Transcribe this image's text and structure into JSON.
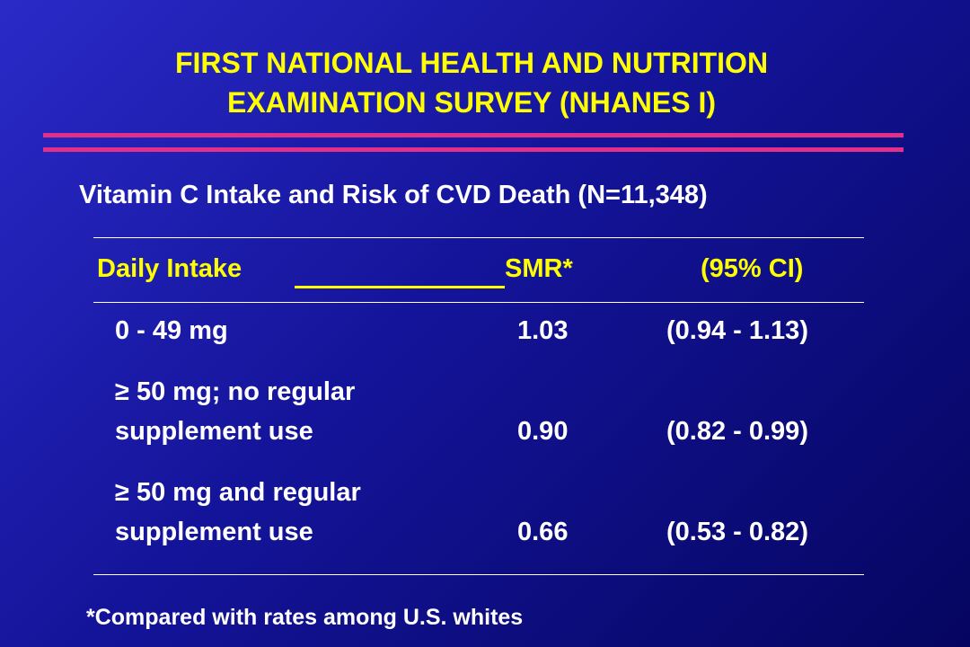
{
  "slide": {
    "title_line1": "FIRST NATIONAL HEALTH AND NUTRITION",
    "title_line2": "EXAMINATION SURVEY (NHANES I)",
    "subtitle": "Vitamin C Intake and Risk of CVD Death (N=11,348)",
    "colors": {
      "title": "#ffff00",
      "rule": "#e0308a",
      "text": "#ffffff"
    }
  },
  "table": {
    "headers": {
      "intake": "Daily Intake",
      "smr": "SMR*",
      "ci": "(95% CI)"
    },
    "rows": [
      {
        "intake_line1": "0 - 49 mg",
        "intake_line2": "",
        "smr": "1.03",
        "ci": "(0.94 - 1.13)"
      },
      {
        "intake_line1": "≥ 50 mg; no regular",
        "intake_line2": "supplement use",
        "smr": "0.90",
        "ci": "(0.82 - 0.99)"
      },
      {
        "intake_line1": "≥ 50 mg and regular",
        "intake_line2": "supplement use",
        "smr": "0.66",
        "ci": "(0.53 - 0.82)"
      }
    ]
  },
  "footnote": "*Compared with rates among U.S. whites"
}
